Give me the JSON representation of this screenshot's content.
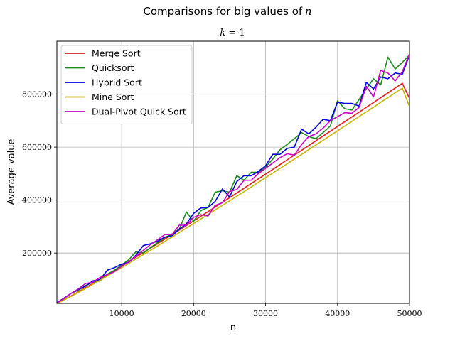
{
  "chart_data": {
    "type": "line",
    "title": "Comparisons for big values of",
    "title_var": "n",
    "subtitle_var": "k",
    "subtitle_value": "= 1",
    "xlabel": "n",
    "ylabel": "Average value",
    "xlim": [
      1000,
      50000
    ],
    "ylim": [
      10000,
      1000000
    ],
    "xticks": [
      10000,
      20000,
      30000,
      40000,
      50000
    ],
    "yticks": [
      200000,
      400000,
      600000,
      800000
    ],
    "grid": true,
    "legend_position": "top-left",
    "x": [
      1000,
      2000,
      3000,
      4000,
      5000,
      6000,
      7000,
      8000,
      9000,
      10000,
      11000,
      12000,
      13000,
      14000,
      15000,
      16000,
      17000,
      18000,
      19000,
      20000,
      21000,
      22000,
      23000,
      24000,
      25000,
      26000,
      27000,
      28000,
      29000,
      30000,
      31000,
      32000,
      33000,
      34000,
      35000,
      36000,
      37000,
      38000,
      39000,
      40000,
      41000,
      42000,
      43000,
      44000,
      45000,
      46000,
      47000,
      48000,
      49000,
      50000
    ],
    "series": [
      {
        "name": "Merge Sort",
        "color": "#e41a1c",
        "values": [
          10000,
          24000,
          38500,
          54000,
          69500,
          85500,
          101500,
          118000,
          134500,
          151000,
          168000,
          184500,
          201500,
          218500,
          235500,
          252500,
          269500,
          287000,
          304000,
          321500,
          339000,
          356500,
          374000,
          391500,
          409000,
          427000,
          444500,
          462500,
          480000,
          498000,
          516000,
          534000,
          552000,
          570000,
          588000,
          606000,
          624000,
          642000,
          660000,
          678000,
          696000,
          714000,
          732000,
          750500,
          768500,
          786500,
          804500,
          823000,
          841000,
          784000
        ]
      },
      {
        "name": "Quicksort",
        "color": "#1a8a1a",
        "values": [
          12000,
          28000,
          48000,
          60000,
          78000,
          90000,
          95000,
          120000,
          135000,
          155000,
          175000,
          205000,
          200000,
          220000,
          240000,
          258000,
          272000,
          290000,
          355000,
          320000,
          360000,
          372000,
          430000,
          435000,
          430000,
          492000,
          475000,
          505000,
          505000,
          525000,
          555000,
          590000,
          610000,
          632000,
          655000,
          640000,
          632000,
          655000,
          680000,
          775000,
          745000,
          740000,
          780000,
          820000,
          858000,
          835000,
          940000,
          895000,
          920000,
          948000
        ]
      },
      {
        "name": "Hybrid Sort",
        "color": "#0000e0",
        "values": [
          12500,
          30000,
          48000,
          63000,
          75000,
          95000,
          100000,
          135000,
          145000,
          158000,
          165000,
          192000,
          228000,
          235000,
          245000,
          260000,
          265000,
          290000,
          310000,
          350000,
          370000,
          372000,
          395000,
          442000,
          412000,
          470000,
          492000,
          492000,
          508000,
          530000,
          573000,
          573000,
          595000,
          600000,
          668000,
          650000,
          675000,
          705000,
          700000,
          770000,
          765000,
          765000,
          755000,
          845000,
          820000,
          865000,
          858000,
          880000,
          875000,
          948000
        ]
      },
      {
        "name": "Mine Sort",
        "color": "#c8b400",
        "values": [
          9500,
          23000,
          37000,
          51500,
          66500,
          82000,
          97500,
          113000,
          129000,
          145000,
          161000,
          177500,
          194000,
          210500,
          227000,
          244000,
          260500,
          277500,
          294500,
          311500,
          328500,
          345500,
          362500,
          380000,
          397000,
          414500,
          432000,
          449500,
          467000,
          484500,
          502000,
          519500,
          537000,
          555000,
          572500,
          590500,
          608000,
          626000,
          644000,
          661500,
          679500,
          697500,
          715500,
          733000,
          751000,
          769000,
          787000,
          805000,
          823000,
          753000
        ]
      },
      {
        "name": "Dual-Pivot Quick Sort",
        "color": "#c800c8",
        "values": [
          11500,
          29000,
          48000,
          65000,
          85000,
          90000,
          108000,
          118000,
          130000,
          150000,
          168000,
          188000,
          210000,
          232000,
          250000,
          270000,
          270000,
          305000,
          305000,
          335000,
          345000,
          340000,
          380000,
          390000,
          432000,
          440000,
          475000,
          475000,
          500000,
          520000,
          540000,
          560000,
          575000,
          570000,
          610000,
          640000,
          650000,
          672000,
          700000,
          715000,
          730000,
          728000,
          750000,
          830000,
          790000,
          890000,
          880000,
          850000,
          885000,
          952000
        ]
      }
    ]
  }
}
